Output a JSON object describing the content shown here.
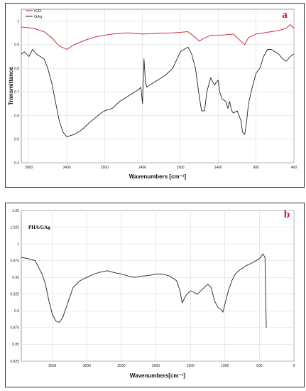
{
  "accent_color": "#c0182a",
  "chart_data": [
    {
      "id": "a",
      "type": "line",
      "panel_label": "a",
      "title": "",
      "xlabel": "Wavenumbers [cm⁻¹]",
      "ylabel": "Transmittance",
      "xlim": [
        4000,
        400
      ],
      "ylim": [
        0.4,
        1.05
      ],
      "x_ticks": [
        "3900",
        "3400",
        "2900",
        "2400",
        "1900",
        "1400",
        "900",
        "400"
      ],
      "y_ticks": [
        "1",
        "0.9",
        "0.8",
        "0.7",
        "0.6",
        "0.5",
        "0.4"
      ],
      "grid": true,
      "legend": "top-left",
      "series": [
        {
          "name": "rGO",
          "color": "#c0182a",
          "x": [
            4000,
            3850,
            3700,
            3600,
            3500,
            3400,
            3300,
            3150,
            3000,
            2800,
            2600,
            2400,
            2200,
            2000,
            1800,
            1700,
            1650,
            1600,
            1500,
            1400,
            1300,
            1200,
            1100,
            1050,
            1000,
            900,
            800,
            700,
            600,
            500,
            450,
            420,
            400
          ],
          "y": [
            0.975,
            0.97,
            0.955,
            0.93,
            0.895,
            0.88,
            0.9,
            0.92,
            0.935,
            0.945,
            0.95,
            0.945,
            0.948,
            0.95,
            0.955,
            0.93,
            0.915,
            0.925,
            0.94,
            0.94,
            0.942,
            0.945,
            0.915,
            0.9,
            0.93,
            0.945,
            0.95,
            0.955,
            0.96,
            0.97,
            0.985,
            0.975,
            0.97
          ]
        },
        {
          "name": "GAg",
          "color": "#222222",
          "x": [
            4000,
            3960,
            3900,
            3850,
            3800,
            3750,
            3700,
            3650,
            3600,
            3550,
            3500,
            3450,
            3400,
            3300,
            3200,
            3100,
            2950,
            2900,
            2800,
            2700,
            2600,
            2500,
            2450,
            2420,
            2400,
            2380,
            2360,
            2340,
            2300,
            2200,
            2100,
            2000,
            1900,
            1800,
            1750,
            1700,
            1650,
            1620,
            1580,
            1550,
            1500,
            1450,
            1400,
            1380,
            1350,
            1300,
            1270,
            1250,
            1220,
            1200,
            1150,
            1100,
            1080,
            1050,
            1030,
            1000,
            950,
            900,
            850,
            800,
            750,
            700,
            650,
            600,
            550,
            500,
            450,
            400
          ],
          "y": [
            0.86,
            0.87,
            0.85,
            0.88,
            0.86,
            0.85,
            0.84,
            0.8,
            0.74,
            0.66,
            0.58,
            0.53,
            0.51,
            0.52,
            0.54,
            0.57,
            0.61,
            0.62,
            0.63,
            0.66,
            0.68,
            0.7,
            0.71,
            0.72,
            0.65,
            0.84,
            0.74,
            0.72,
            0.73,
            0.75,
            0.77,
            0.8,
            0.87,
            0.89,
            0.86,
            0.8,
            0.68,
            0.62,
            0.62,
            0.7,
            0.76,
            0.73,
            0.75,
            0.7,
            0.67,
            0.66,
            0.63,
            0.66,
            0.62,
            0.61,
            0.62,
            0.58,
            0.53,
            0.52,
            0.56,
            0.65,
            0.72,
            0.78,
            0.8,
            0.85,
            0.88,
            0.88,
            0.87,
            0.86,
            0.84,
            0.83,
            0.85,
            0.86
          ]
        }
      ]
    },
    {
      "id": "b",
      "type": "line",
      "panel_label": "b",
      "title": "",
      "xlabel": "Wavenumbers[cm⁻¹]",
      "ylabel": "",
      "xlim": [
        3950,
        0
      ],
      "ylim": [
        0.825,
        1.05
      ],
      "x_ticks": [
        "3500",
        "3000",
        "2500",
        "2000",
        "1500",
        "1000",
        "500",
        "0"
      ],
      "y_ticks": [
        "1.05",
        "1.025",
        "1",
        "0.975",
        "0.95",
        "0.925",
        "0.9",
        "0.875",
        "0.85",
        "0.825"
      ],
      "grid": true,
      "legend": "top-left",
      "series": [
        {
          "name": "PHA/GAg",
          "color": "#222222",
          "x": [
            3950,
            3850,
            3750,
            3700,
            3650,
            3600,
            3550,
            3500,
            3450,
            3400,
            3350,
            3300,
            3200,
            3100,
            3000,
            2900,
            2800,
            2700,
            2600,
            2500,
            2400,
            2300,
            2200,
            2100,
            2000,
            1900,
            1800,
            1700,
            1650,
            1620,
            1580,
            1550,
            1500,
            1450,
            1400,
            1300,
            1250,
            1200,
            1150,
            1100,
            1050,
            1030,
            1000,
            950,
            900,
            850,
            800,
            700,
            600,
            500,
            450,
            420,
            400
          ],
          "y": [
            0.98,
            0.978,
            0.975,
            0.965,
            0.955,
            0.94,
            0.915,
            0.895,
            0.885,
            0.883,
            0.89,
            0.905,
            0.935,
            0.945,
            0.95,
            0.955,
            0.958,
            0.96,
            0.957,
            0.955,
            0.952,
            0.95,
            0.952,
            0.953,
            0.955,
            0.955,
            0.952,
            0.945,
            0.93,
            0.912,
            0.92,
            0.925,
            0.93,
            0.928,
            0.925,
            0.935,
            0.94,
            0.935,
            0.915,
            0.905,
            0.902,
            0.898,
            0.91,
            0.93,
            0.945,
            0.955,
            0.96,
            0.967,
            0.972,
            0.978,
            0.985,
            0.98,
            0.875
          ]
        }
      ]
    }
  ]
}
